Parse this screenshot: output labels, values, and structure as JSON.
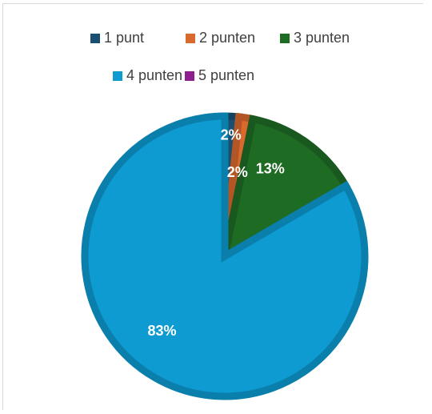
{
  "chart_data": {
    "type": "pie",
    "categories": [
      "1 punt",
      "2 punten",
      "3 punten",
      "4 punten",
      "5 punten"
    ],
    "values": [
      1.6,
      1.6,
      13.4,
      83.4,
      0.0
    ],
    "labels": [
      "2%",
      "2%",
      "13%",
      "83%",
      ""
    ],
    "colors": [
      "#1b4f72",
      "#d9692d",
      "#1e6b24",
      "#0e9bd2",
      "#8e1f8e"
    ],
    "legend_position": "top"
  },
  "legend": [
    {
      "label": "1 punt",
      "color": "#1b4f72"
    },
    {
      "label": "2 punten",
      "color": "#d9692d"
    },
    {
      "label": "3 punten",
      "color": "#1e6b24"
    },
    {
      "label": "4 punten",
      "color": "#0e9bd2"
    },
    {
      "label": "5 punten",
      "color": "#8e1f8e"
    }
  ]
}
